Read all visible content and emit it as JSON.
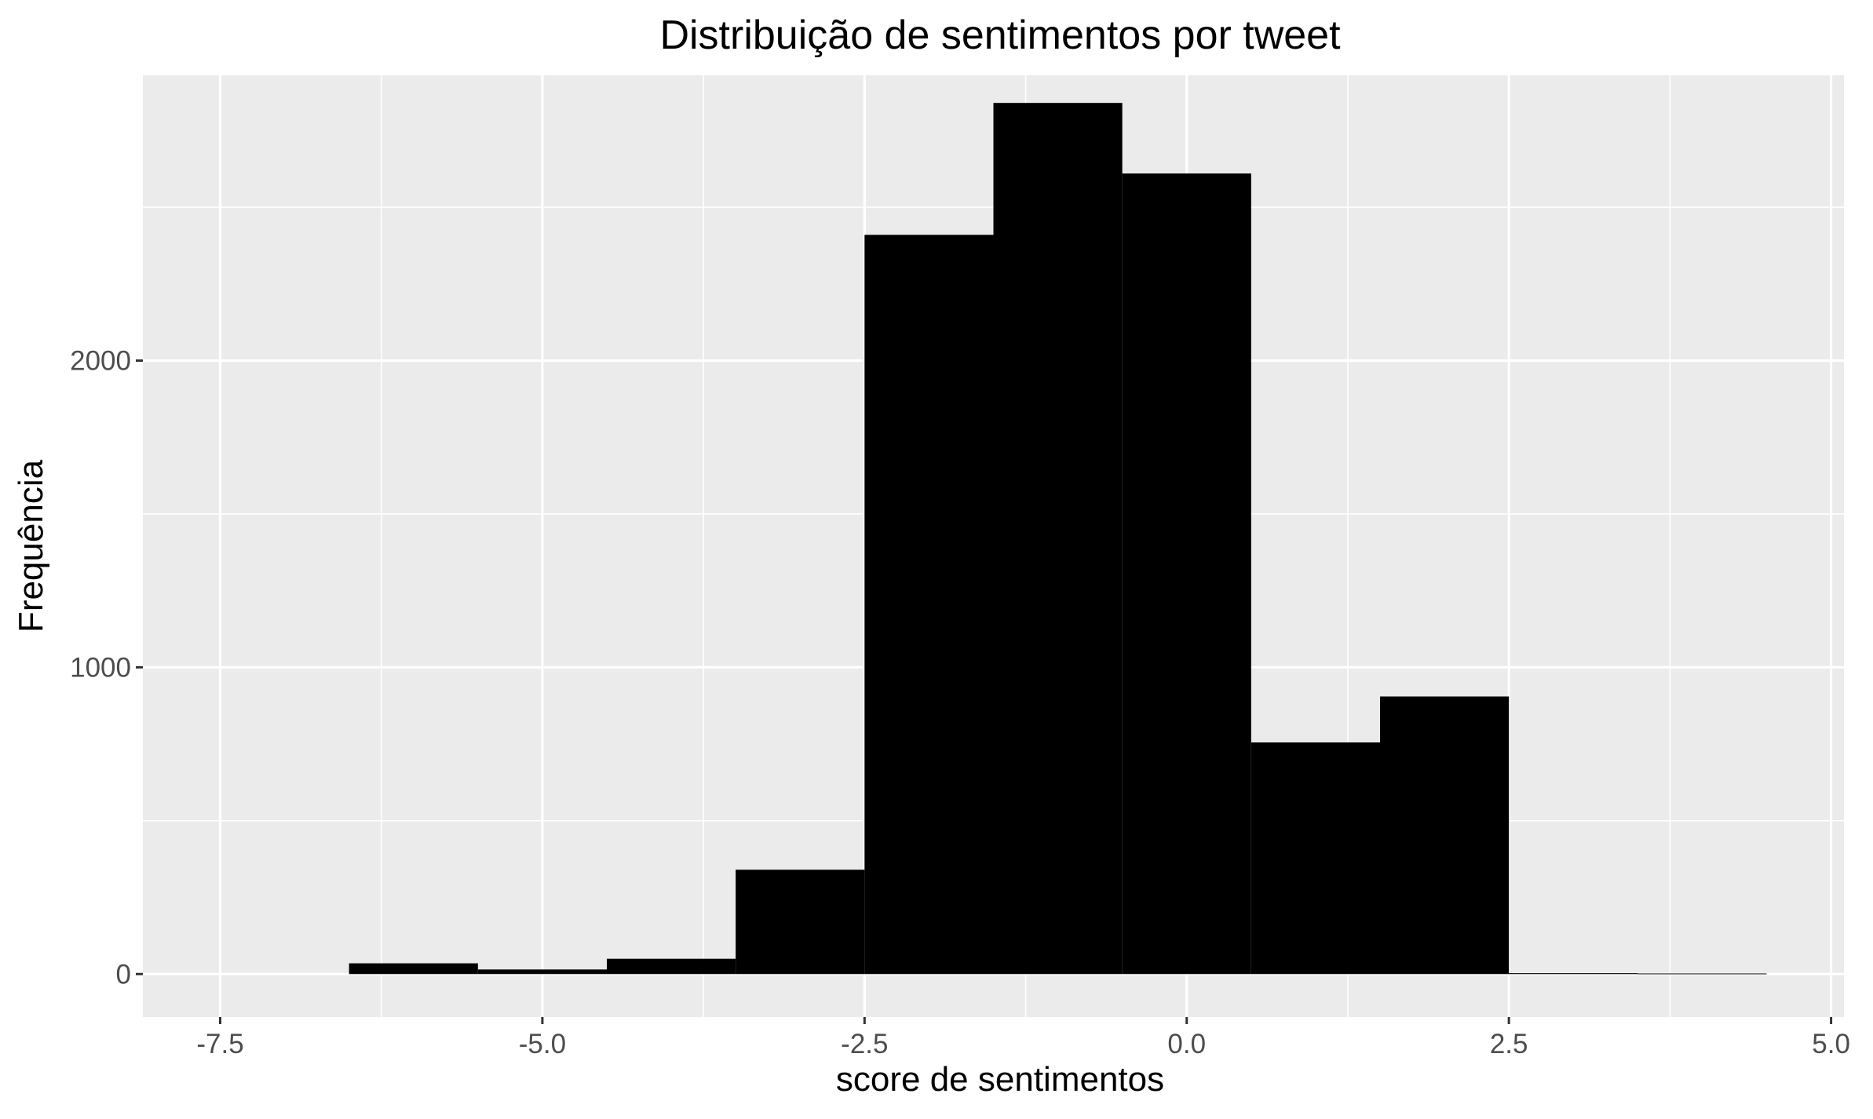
{
  "chart_data": {
    "type": "bar",
    "subtype": "histogram",
    "title": "Distribuição de sentimentos por tweet",
    "xlabel": "score de sentimentos",
    "ylabel": "Frequência",
    "xlim": [
      -8.1,
      5.1
    ],
    "ylim": [
      -140,
      2930
    ],
    "x_ticks": [
      -7.5,
      -5.0,
      -2.5,
      0.0,
      2.5,
      5.0
    ],
    "x_tick_labels": [
      "-7.5",
      "-5.0",
      "-2.5",
      "0.0",
      "2.5",
      "5.0"
    ],
    "y_ticks": [
      0,
      1000,
      2000
    ],
    "y_tick_labels": [
      "0",
      "1000",
      "2000"
    ],
    "grid": true,
    "bar_color": "#000000",
    "panel_color": "#ebebeb",
    "bins": [
      {
        "x_start": -6.5,
        "x_end": -5.5,
        "count": 35
      },
      {
        "x_start": -5.5,
        "x_end": -4.5,
        "count": 15
      },
      {
        "x_start": -4.5,
        "x_end": -3.5,
        "count": 50
      },
      {
        "x_start": -3.5,
        "x_end": -2.5,
        "count": 340
      },
      {
        "x_start": -2.5,
        "x_end": -1.5,
        "count": 2410
      },
      {
        "x_start": -1.5,
        "x_end": -0.5,
        "count": 2840
      },
      {
        "x_start": -0.5,
        "x_end": 0.5,
        "count": 2610
      },
      {
        "x_start": 0.5,
        "x_end": 1.5,
        "count": 755
      },
      {
        "x_start": 1.5,
        "x_end": 2.5,
        "count": 905
      },
      {
        "x_start": 2.5,
        "x_end": 3.5,
        "count": 3
      },
      {
        "x_start": 3.5,
        "x_end": 4.5,
        "count": 2
      }
    ]
  }
}
